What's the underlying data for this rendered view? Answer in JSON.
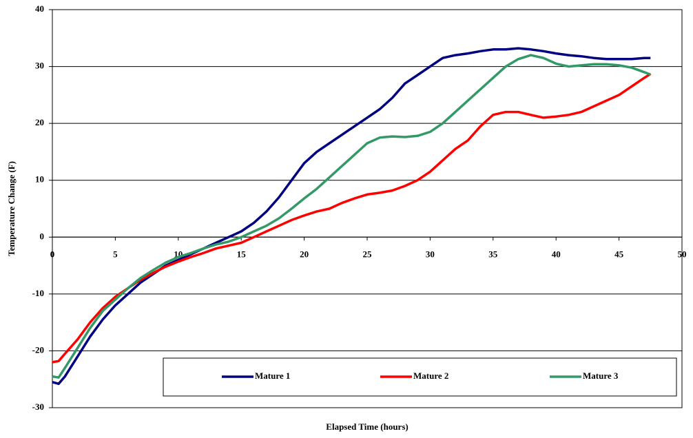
{
  "chart_data": {
    "type": "line",
    "x_label": "Elapsed Time (hours)",
    "y_label": "Temperature Change (F)",
    "xlim": [
      0,
      50
    ],
    "xticks": [
      0,
      5,
      10,
      15,
      20,
      25,
      30,
      35,
      40,
      45,
      50
    ],
    "ylim": [
      -30,
      40
    ],
    "yticks": [
      -30,
      -20,
      -10,
      0,
      10,
      20,
      30,
      40
    ],
    "grid": true,
    "legend": "bottom",
    "x": [
      0,
      0.5,
      1,
      2,
      3,
      4,
      5,
      6,
      7,
      8,
      9,
      10,
      11,
      12,
      13,
      14,
      15,
      16,
      17,
      18,
      19,
      20,
      21,
      22,
      23,
      24,
      25,
      26,
      27,
      28,
      29,
      30,
      31,
      32,
      33,
      34,
      35,
      36,
      37,
      38,
      39,
      40,
      41,
      42,
      43,
      44,
      45,
      46,
      47,
      47.5
    ],
    "series": [
      {
        "name": "Mature 1",
        "color": "#000080",
        "values": [
          -25.5,
          -25.8,
          -24.5,
          -21,
          -17.5,
          -14.5,
          -12,
          -10,
          -8,
          -6.5,
          -5,
          -4,
          -3,
          -2,
          -1,
          0,
          1,
          2.5,
          4.5,
          7,
          10,
          13,
          15,
          16.5,
          18,
          19.5,
          21,
          22.5,
          24.5,
          27,
          28.5,
          30,
          31.5,
          32,
          32.3,
          32.7,
          33,
          33,
          33.2,
          33,
          32.7,
          32.3,
          32,
          31.8,
          31.5,
          31.3,
          31.3,
          31.3,
          31.5,
          31.5
        ]
      },
      {
        "name": "Mature 2",
        "color": "#ff0000",
        "values": [
          -22,
          -21.8,
          -20.5,
          -18,
          -15,
          -12.5,
          -10.5,
          -9,
          -7.5,
          -6.3,
          -5.2,
          -4.3,
          -3.5,
          -2.8,
          -2,
          -1.5,
          -1,
          0,
          1,
          2,
          3,
          3.8,
          4.5,
          5,
          6,
          6.8,
          7.5,
          7.8,
          8.2,
          9,
          10,
          11.5,
          13.5,
          15.5,
          17,
          19.5,
          21.5,
          22,
          22,
          21.5,
          21,
          21.2,
          21.5,
          22,
          23,
          24,
          25,
          26.5,
          28,
          28.7
        ]
      },
      {
        "name": "Mature 3",
        "color": "#339966",
        "values": [
          -24.5,
          -24.7,
          -23,
          -19.5,
          -16,
          -13,
          -11,
          -9,
          -7.2,
          -5.8,
          -4.5,
          -3.5,
          -2.8,
          -2,
          -1.3,
          -0.8,
          0,
          1,
          2,
          3.3,
          5,
          6.8,
          8.5,
          10.5,
          12.5,
          14.5,
          16.5,
          17.5,
          17.7,
          17.6,
          17.8,
          18.5,
          20,
          22,
          24,
          26,
          28,
          30,
          31.3,
          32,
          31.5,
          30.5,
          30,
          30.2,
          30.4,
          30.4,
          30.2,
          29.8,
          29,
          28.6
        ]
      }
    ]
  }
}
